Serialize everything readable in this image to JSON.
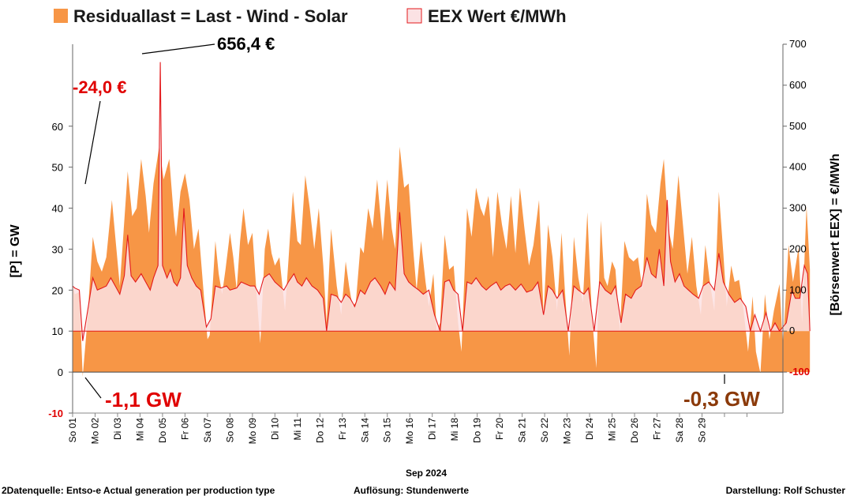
{
  "chart_data": {
    "type": "area",
    "legend": {
      "residual_label": "Residuallast  =  Last - Wind - Solar",
      "eex_label": "EEX Wert €/MWh"
    },
    "colors": {
      "residual_fill": "#f79646",
      "eex_line": "#e31a1c",
      "eex_fill": "#fbe2e4",
      "negative_tick": "#e00000"
    },
    "y_left": {
      "label": "[P]  =  GW",
      "range": [
        -10,
        80
      ],
      "ticks": [
        "60",
        "50",
        "40",
        "30",
        "20",
        "10",
        "0",
        "-10"
      ]
    },
    "y_right": {
      "label": "[Börsenwert  EEX]   =  €/MWh",
      "range": [
        -200,
        700
      ],
      "ticks": [
        "700",
        "600",
        "500",
        "400",
        "300",
        "200",
        "100",
        "0",
        "-100"
      ]
    },
    "x_axis": {
      "title": "Sep 2024",
      "days": 30,
      "tick_labels": [
        "So 01",
        "Mo 02",
        "Di 03",
        "Mi 04",
        "Do 05",
        "Fr 06",
        "Sa 07",
        "So 08",
        "Mo 09",
        "Di 10",
        "Mi 11",
        "Do 12",
        "Fr 13",
        "Sa 14",
        "So 15",
        "Mo 16",
        "Di 17",
        "Mi 18",
        "Do 19",
        "Fr 20",
        "Sa 21",
        "So 22",
        "Mo 23",
        "Di 24",
        "Mi 25",
        "Do 26",
        "Fr 27",
        "Sa 28",
        "So 29"
      ]
    },
    "residual_gw": [
      [
        0.0,
        21.5
      ],
      [
        0.1,
        19.0
      ],
      [
        0.3,
        19.5
      ],
      [
        0.45,
        -1.1
      ],
      [
        0.65,
        12.0
      ],
      [
        0.9,
        33.0
      ],
      [
        1.1,
        27.0
      ],
      [
        1.3,
        24.5
      ],
      [
        1.5,
        28.0
      ],
      [
        1.75,
        42.0
      ],
      [
        1.95,
        30.0
      ],
      [
        2.1,
        21.0
      ],
      [
        2.25,
        33.0
      ],
      [
        2.45,
        49.0
      ],
      [
        2.65,
        38.0
      ],
      [
        2.85,
        40.0
      ],
      [
        3.05,
        52.0
      ],
      [
        3.25,
        43.0
      ],
      [
        3.4,
        34.0
      ],
      [
        3.6,
        46.0
      ],
      [
        3.85,
        55.0
      ],
      [
        4.05,
        47.0
      ],
      [
        4.3,
        52.0
      ],
      [
        4.5,
        38.0
      ],
      [
        4.6,
        33.0
      ],
      [
        4.8,
        44.0
      ],
      [
        5.0,
        48.5
      ],
      [
        5.2,
        42.0
      ],
      [
        5.4,
        30.0
      ],
      [
        5.6,
        35.0
      ],
      [
        5.85,
        18.0
      ],
      [
        6.0,
        8.0
      ],
      [
        6.1,
        9.0
      ],
      [
        6.35,
        32.0
      ],
      [
        6.5,
        24.0
      ],
      [
        6.65,
        19.0
      ],
      [
        6.8,
        25.0
      ],
      [
        7.0,
        34.0
      ],
      [
        7.15,
        28.0
      ],
      [
        7.3,
        20.0
      ],
      [
        7.45,
        32.0
      ],
      [
        7.6,
        40.0
      ],
      [
        7.8,
        31.0
      ],
      [
        8.0,
        34.0
      ],
      [
        8.2,
        18.0
      ],
      [
        8.35,
        7.0
      ],
      [
        8.55,
        30.0
      ],
      [
        8.7,
        35.0
      ],
      [
        8.85,
        29.0
      ],
      [
        9.0,
        26.0
      ],
      [
        9.2,
        28.0
      ],
      [
        9.45,
        15.0
      ],
      [
        9.6,
        27.0
      ],
      [
        9.8,
        44.0
      ],
      [
        10.0,
        32.0
      ],
      [
        10.15,
        31.0
      ],
      [
        10.35,
        48.0
      ],
      [
        10.55,
        40.0
      ],
      [
        10.75,
        30.0
      ],
      [
        10.95,
        40.0
      ],
      [
        11.15,
        26.0
      ],
      [
        11.3,
        12.0
      ],
      [
        11.5,
        35.0
      ],
      [
        11.75,
        21.0
      ],
      [
        11.95,
        14.0
      ],
      [
        12.15,
        27.0
      ],
      [
        12.3,
        21.0
      ],
      [
        12.45,
        16.0
      ],
      [
        12.6,
        17.0
      ],
      [
        12.8,
        30.5
      ],
      [
        12.95,
        29.0
      ],
      [
        13.15,
        40.0
      ],
      [
        13.35,
        35.0
      ],
      [
        13.55,
        47.0
      ],
      [
        13.8,
        32.0
      ],
      [
        14.0,
        47.0
      ],
      [
        14.2,
        35.0
      ],
      [
        14.35,
        30.0
      ],
      [
        14.55,
        55.0
      ],
      [
        14.75,
        45.0
      ],
      [
        14.95,
        46.0
      ],
      [
        15.15,
        30.0
      ],
      [
        15.3,
        20.0
      ],
      [
        15.5,
        32.0
      ],
      [
        15.7,
        22.0
      ],
      [
        15.85,
        16.0
      ],
      [
        16.05,
        24.0
      ],
      [
        16.2,
        10.0
      ],
      [
        16.35,
        12.0
      ],
      [
        16.55,
        33.5
      ],
      [
        16.75,
        25.0
      ],
      [
        16.95,
        26.0
      ],
      [
        17.15,
        12.0
      ],
      [
        17.3,
        5.0
      ],
      [
        17.55,
        40.0
      ],
      [
        17.75,
        33.0
      ],
      [
        17.95,
        45.0
      ],
      [
        18.15,
        40.0
      ],
      [
        18.3,
        38.0
      ],
      [
        18.5,
        43.0
      ],
      [
        18.7,
        28.0
      ],
      [
        18.9,
        44.0
      ],
      [
        19.1,
        36.0
      ],
      [
        19.3,
        30.0
      ],
      [
        19.5,
        43.0
      ],
      [
        19.7,
        29.0
      ],
      [
        19.9,
        45.0
      ],
      [
        20.1,
        35.0
      ],
      [
        20.3,
        26.0
      ],
      [
        20.5,
        31.0
      ],
      [
        20.75,
        42.0
      ],
      [
        20.95,
        14.0
      ],
      [
        21.15,
        36.0
      ],
      [
        21.35,
        28.0
      ],
      [
        21.55,
        15.0
      ],
      [
        21.75,
        34.0
      ],
      [
        21.9,
        20.0
      ],
      [
        22.1,
        4.0
      ],
      [
        22.3,
        33.0
      ],
      [
        22.5,
        23.0
      ],
      [
        22.7,
        17.0
      ],
      [
        22.9,
        39.0
      ],
      [
        23.1,
        14.0
      ],
      [
        23.3,
        1.0
      ],
      [
        23.5,
        37.0
      ],
      [
        23.65,
        23.0
      ],
      [
        23.8,
        21.0
      ],
      [
        24.0,
        27.0
      ],
      [
        24.15,
        25.0
      ],
      [
        24.35,
        10.0
      ],
      [
        24.55,
        32.0
      ],
      [
        24.75,
        28.0
      ],
      [
        24.95,
        27.0
      ],
      [
        25.15,
        28.0
      ],
      [
        25.35,
        20.0
      ],
      [
        25.55,
        43.5
      ],
      [
        25.75,
        36.0
      ],
      [
        25.95,
        34.0
      ],
      [
        26.15,
        46.0
      ],
      [
        26.3,
        52.0
      ],
      [
        26.5,
        35.0
      ],
      [
        26.7,
        30.0
      ],
      [
        26.95,
        48.0
      ],
      [
        27.15,
        36.0
      ],
      [
        27.35,
        24.0
      ],
      [
        27.55,
        33.0
      ],
      [
        27.75,
        21.0
      ],
      [
        27.95,
        14.0
      ],
      [
        28.15,
        31.0
      ],
      [
        28.35,
        22.0
      ],
      [
        28.55,
        15.0
      ],
      [
        28.75,
        44.0
      ],
      [
        28.95,
        29.0
      ],
      [
        29.1,
        16.0
      ],
      [
        29.3,
        26.0
      ],
      [
        29.45,
        22.0
      ],
      [
        29.65,
        22.5
      ],
      [
        29.85,
        15.0
      ],
      [
        30.05,
        5.0
      ],
      [
        30.25,
        18.5
      ],
      [
        30.4,
        5.0
      ],
      [
        30.6,
        -0.3
      ],
      [
        30.8,
        19.0
      ],
      [
        31.0,
        8.0
      ],
      [
        31.2,
        15.0
      ],
      [
        31.45,
        21.5
      ],
      [
        31.6,
        6.0
      ],
      [
        31.85,
        31.0
      ],
      [
        32.05,
        22.0
      ],
      [
        32.3,
        30.5
      ],
      [
        32.45,
        12.0
      ],
      [
        32.65,
        40.5
      ],
      [
        32.8,
        25.0
      ]
    ],
    "eex_eur_mwh": [
      [
        0.0,
        110
      ],
      [
        0.1,
        105
      ],
      [
        0.3,
        100
      ],
      [
        0.45,
        -24
      ],
      [
        0.7,
        60
      ],
      [
        0.9,
        130
      ],
      [
        1.1,
        100
      ],
      [
        1.3,
        105
      ],
      [
        1.5,
        110
      ],
      [
        1.7,
        130
      ],
      [
        1.9,
        110
      ],
      [
        2.1,
        90
      ],
      [
        2.3,
        135
      ],
      [
        2.45,
        235
      ],
      [
        2.6,
        135
      ],
      [
        2.8,
        120
      ],
      [
        3.05,
        140
      ],
      [
        3.25,
        120
      ],
      [
        3.45,
        100
      ],
      [
        3.6,
        130
      ],
      [
        3.8,
        160
      ],
      [
        3.9,
        656.4
      ],
      [
        4.0,
        160
      ],
      [
        4.2,
        130
      ],
      [
        4.35,
        150
      ],
      [
        4.5,
        120
      ],
      [
        4.65,
        110
      ],
      [
        4.8,
        130
      ],
      [
        4.95,
        300
      ],
      [
        5.1,
        160
      ],
      [
        5.3,
        130
      ],
      [
        5.5,
        110
      ],
      [
        5.7,
        100
      ],
      [
        5.95,
        10
      ],
      [
        6.15,
        30
      ],
      [
        6.35,
        110
      ],
      [
        6.6,
        105
      ],
      [
        6.85,
        110
      ],
      [
        7.0,
        100
      ],
      [
        7.3,
        105
      ],
      [
        7.5,
        120
      ],
      [
        7.7,
        115
      ],
      [
        7.9,
        110
      ],
      [
        8.1,
        110
      ],
      [
        8.3,
        90
      ],
      [
        8.5,
        130
      ],
      [
        8.75,
        140
      ],
      [
        9.0,
        120
      ],
      [
        9.2,
        110
      ],
      [
        9.4,
        100
      ],
      [
        9.6,
        120
      ],
      [
        9.85,
        140
      ],
      [
        10.0,
        120
      ],
      [
        10.2,
        110
      ],
      [
        10.4,
        130
      ],
      [
        10.65,
        110
      ],
      [
        10.9,
        100
      ],
      [
        11.15,
        80
      ],
      [
        11.3,
        0
      ],
      [
        11.5,
        90
      ],
      [
        11.75,
        85
      ],
      [
        11.95,
        70
      ],
      [
        12.15,
        90
      ],
      [
        12.35,
        80
      ],
      [
        12.55,
        60
      ],
      [
        12.8,
        100
      ],
      [
        13.0,
        90
      ],
      [
        13.25,
        120
      ],
      [
        13.45,
        130
      ],
      [
        13.7,
        110
      ],
      [
        13.9,
        90
      ],
      [
        14.1,
        120
      ],
      [
        14.35,
        100
      ],
      [
        14.55,
        290
      ],
      [
        14.75,
        140
      ],
      [
        14.95,
        120
      ],
      [
        15.15,
        110
      ],
      [
        15.4,
        100
      ],
      [
        15.6,
        90
      ],
      [
        15.85,
        100
      ],
      [
        16.1,
        40
      ],
      [
        16.35,
        0
      ],
      [
        16.55,
        120
      ],
      [
        16.75,
        125
      ],
      [
        16.95,
        100
      ],
      [
        17.15,
        90
      ],
      [
        17.35,
        0
      ],
      [
        17.55,
        120
      ],
      [
        17.75,
        115
      ],
      [
        17.95,
        130
      ],
      [
        18.2,
        110
      ],
      [
        18.4,
        100
      ],
      [
        18.6,
        110
      ],
      [
        18.85,
        120
      ],
      [
        19.05,
        100
      ],
      [
        19.25,
        110
      ],
      [
        19.45,
        115
      ],
      [
        19.7,
        100
      ],
      [
        19.95,
        115
      ],
      [
        20.2,
        95
      ],
      [
        20.45,
        100
      ],
      [
        20.7,
        120
      ],
      [
        20.95,
        40
      ],
      [
        21.15,
        110
      ],
      [
        21.35,
        100
      ],
      [
        21.55,
        80
      ],
      [
        21.8,
        100
      ],
      [
        22.05,
        0
      ],
      [
        22.3,
        110
      ],
      [
        22.5,
        100
      ],
      [
        22.75,
        90
      ],
      [
        22.95,
        105
      ],
      [
        23.2,
        0
      ],
      [
        23.45,
        120
      ],
      [
        23.7,
        100
      ],
      [
        23.95,
        90
      ],
      [
        24.15,
        110
      ],
      [
        24.4,
        20
      ],
      [
        24.6,
        90
      ],
      [
        24.85,
        80
      ],
      [
        25.05,
        100
      ],
      [
        25.3,
        110
      ],
      [
        25.55,
        180
      ],
      [
        25.75,
        140
      ],
      [
        25.95,
        130
      ],
      [
        26.1,
        200
      ],
      [
        26.3,
        110
      ],
      [
        26.45,
        320
      ],
      [
        26.6,
        170
      ],
      [
        26.8,
        120
      ],
      [
        27.0,
        140
      ],
      [
        27.2,
        110
      ],
      [
        27.4,
        100
      ],
      [
        27.6,
        90
      ],
      [
        27.85,
        80
      ],
      [
        28.05,
        110
      ],
      [
        28.3,
        120
      ],
      [
        28.55,
        100
      ],
      [
        28.75,
        190
      ],
      [
        28.95,
        120
      ],
      [
        29.2,
        90
      ],
      [
        29.45,
        70
      ],
      [
        29.7,
        80
      ],
      [
        29.95,
        60
      ],
      [
        30.15,
        0
      ],
      [
        30.35,
        40
      ],
      [
        30.6,
        0
      ],
      [
        30.85,
        45
      ],
      [
        31.05,
        0
      ],
      [
        31.25,
        20
      ],
      [
        31.45,
        0
      ],
      [
        31.75,
        20
      ],
      [
        32.0,
        100
      ],
      [
        32.15,
        80
      ],
      [
        32.35,
        80
      ],
      [
        32.55,
        160
      ],
      [
        32.7,
        140
      ],
      [
        32.8,
        0
      ]
    ],
    "annotations": {
      "max_price": "656,4 €",
      "min_price": "-24,0 €",
      "min_residual_1": "-1,1 GW",
      "min_residual_2": "-0,3 GW"
    }
  },
  "footer": {
    "source": "2Datenquelle: Entso-e  Actual generation per production type",
    "resolution": "Auflösung:  Stundenwerte",
    "author": "Darstellung:  Rolf Schuster"
  }
}
